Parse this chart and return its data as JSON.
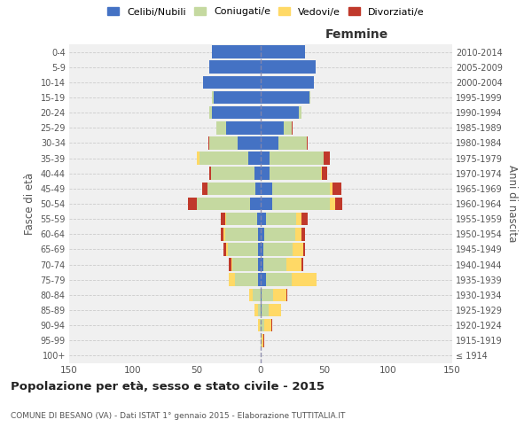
{
  "age_groups": [
    "100+",
    "95-99",
    "90-94",
    "85-89",
    "80-84",
    "75-79",
    "70-74",
    "65-69",
    "60-64",
    "55-59",
    "50-54",
    "45-49",
    "40-44",
    "35-39",
    "30-34",
    "25-29",
    "20-24",
    "15-19",
    "10-14",
    "5-9",
    "0-4"
  ],
  "birth_years": [
    "≤ 1914",
    "1915-1919",
    "1920-1924",
    "1925-1929",
    "1930-1934",
    "1935-1939",
    "1940-1944",
    "1945-1949",
    "1950-1954",
    "1955-1959",
    "1960-1964",
    "1965-1969",
    "1970-1974",
    "1975-1979",
    "1980-1984",
    "1985-1989",
    "1990-1994",
    "1995-1999",
    "2000-2004",
    "2005-2009",
    "2010-2014"
  ],
  "male": {
    "celibi": [
      0,
      0,
      0,
      0,
      0,
      2,
      2,
      2,
      2,
      3,
      8,
      4,
      5,
      10,
      18,
      27,
      38,
      37,
      45,
      40,
      38
    ],
    "coniugati": [
      0,
      0,
      1,
      2,
      6,
      18,
      20,
      24,
      26,
      24,
      42,
      38,
      34,
      38,
      22,
      8,
      2,
      1,
      0,
      0,
      0
    ],
    "vedovi": [
      0,
      0,
      1,
      3,
      3,
      5,
      1,
      1,
      1,
      1,
      0,
      0,
      0,
      2,
      0,
      0,
      0,
      0,
      0,
      0,
      0
    ],
    "divorziati": [
      0,
      0,
      0,
      0,
      0,
      0,
      2,
      2,
      2,
      3,
      7,
      4,
      1,
      0,
      1,
      0,
      0,
      0,
      0,
      0,
      0
    ]
  },
  "female": {
    "nubili": [
      0,
      0,
      0,
      1,
      1,
      4,
      2,
      2,
      3,
      4,
      9,
      9,
      7,
      7,
      14,
      18,
      30,
      38,
      42,
      43,
      35
    ],
    "coniugate": [
      0,
      1,
      3,
      5,
      9,
      20,
      18,
      23,
      24,
      24,
      45,
      45,
      40,
      42,
      22,
      6,
      2,
      1,
      0,
      0,
      0
    ],
    "vedove": [
      0,
      1,
      5,
      10,
      10,
      20,
      12,
      8,
      5,
      4,
      4,
      2,
      1,
      0,
      0,
      0,
      0,
      0,
      0,
      0,
      0
    ],
    "divorziate": [
      0,
      1,
      1,
      0,
      1,
      0,
      1,
      2,
      3,
      5,
      6,
      7,
      4,
      5,
      1,
      1,
      0,
      0,
      0,
      0,
      0
    ]
  },
  "colors": {
    "celibi": "#4472c4",
    "coniugati": "#c5d9a0",
    "vedovi": "#ffd966",
    "divorziati": "#c0392b"
  },
  "title": "Popolazione per età, sesso e stato civile - 2015",
  "subtitle": "COMUNE DI BESANO (VA) - Dati ISTAT 1° gennaio 2015 - Elaborazione TUTTITALIA.IT",
  "ylabel_left": "Fasce di età",
  "ylabel_right": "Anni di nascita",
  "xlabel_right": "Femmine",
  "xlim": 150,
  "background_color": "#ffffff",
  "plot_bg_color": "#f0f0f0",
  "grid_color": "#cccccc",
  "legend_labels": [
    "Celibi/Nubili",
    "Coniugati/e",
    "Vedovi/e",
    "Divorziati/e"
  ]
}
